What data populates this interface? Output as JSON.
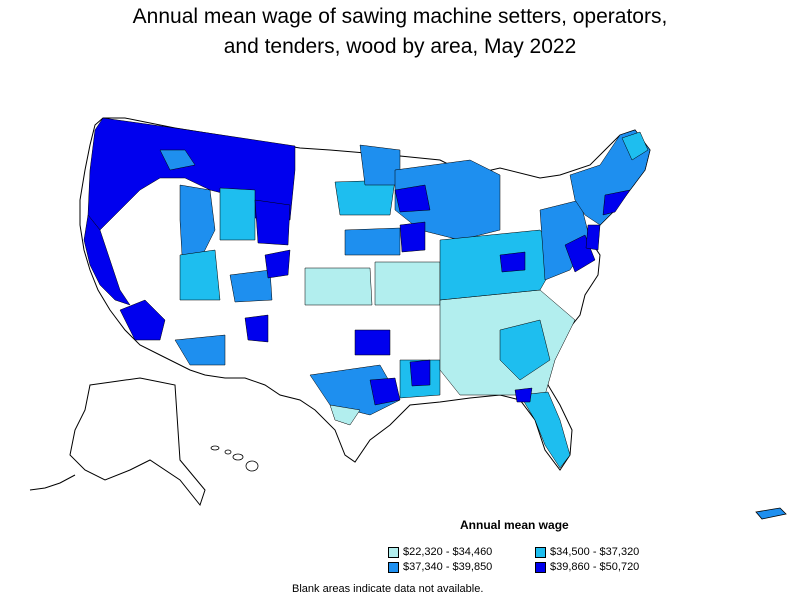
{
  "title_line1": "Annual mean wage of sawing machine setters, operators,",
  "title_line2": "and tenders, wood by area, May 2022",
  "legend": {
    "title": "Annual mean wage",
    "items": [
      {
        "label": "$22,320 - $34,460",
        "color": "#b2eeee"
      },
      {
        "label": "$34,500 - $37,320",
        "color": "#1ebeef"
      },
      {
        "label": "$37,340 - $39,850",
        "color": "#1e8fef"
      },
      {
        "label": "$39,860 - $50,720",
        "color": "#0000ee"
      }
    ]
  },
  "note": "Blank areas indicate data not available."
}
